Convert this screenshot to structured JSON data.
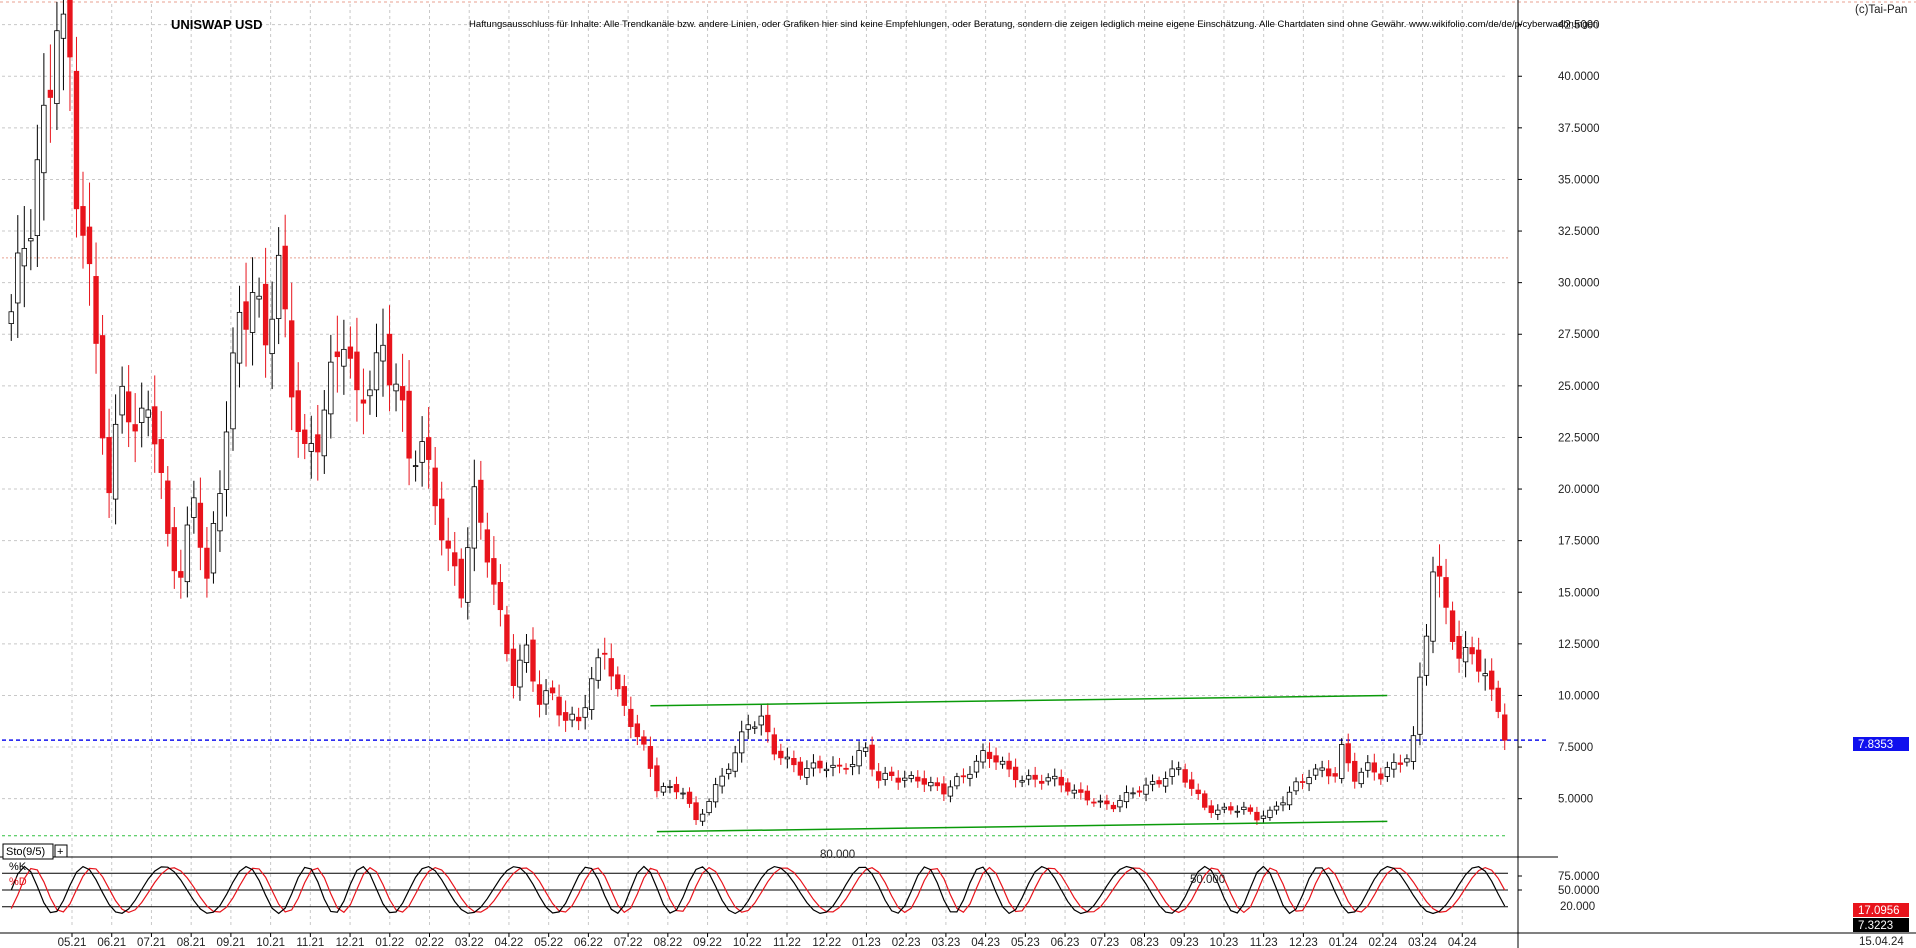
{
  "header": {
    "title": "UNISWAP USD",
    "disclaimer": "Haftungsausschluss für Inhalte: Alle Trendkanäle bzw. andere Linien, oder Grafiken hier sind keine Empfehlungen, oder Beratung, sondern die zeigen lediglich meine eigene Einschätzung. Alle Chartdaten sind ohne Gewähr.  www.wikifolio.com/de/de/p/cyberwaehrungen",
    "copyright": "(c)Tai-Pan"
  },
  "colors": {
    "up_candle": "#000000",
    "down_candle": "#e8141c",
    "trend_line": "#0a9a0a",
    "price_line": "#1010ee",
    "k_line": "#000000",
    "d_line": "#e8141c",
    "resistance_line": "#e8a090",
    "support_line": "#30c040"
  },
  "chart_data": [
    {
      "type": "candlestick",
      "title": "UNISWAP USD",
      "ylim": [
        2.9,
        43.5
      ],
      "y_ticks": [
        "42.5000",
        "40.0000",
        "37.5000",
        "35.0000",
        "32.5000",
        "30.0000",
        "27.5000",
        "25.0000",
        "22.5000",
        "20.0000",
        "17.5000",
        "15.0000",
        "12.5000",
        "10.0000",
        "7.5000",
        "5.0000"
      ],
      "x_ticks": [
        "05.21",
        "06.21",
        "07.21",
        "08.21",
        "09.21",
        "10.21",
        "11.21",
        "12.21",
        "01.22",
        "02.22",
        "03.22",
        "04.22",
        "05.22",
        "06.22",
        "07.22",
        "08.22",
        "09.22",
        "10.22",
        "11.22",
        "12.22",
        "01.23",
        "02.23",
        "03.23",
        "04.23",
        "05.23",
        "06.23",
        "07.23",
        "08.23",
        "09.23",
        "10.23",
        "11.23",
        "12.23",
        "01.24",
        "02.24",
        "03.24",
        "04.24"
      ],
      "last_date": "15.04.24",
      "current_price": "7.8353",
      "current_value": 7.8353,
      "resistance_level": 31.2,
      "support_level": 3.2,
      "anchors": [
        [
          0,
          28
        ],
        [
          3,
          33
        ],
        [
          6,
          41
        ],
        [
          7,
          44
        ],
        [
          9,
          40
        ],
        [
          10,
          34
        ],
        [
          13,
          27
        ],
        [
          15,
          20
        ],
        [
          17,
          26
        ],
        [
          19,
          22
        ],
        [
          21,
          24
        ],
        [
          24,
          18
        ],
        [
          26,
          16
        ],
        [
          28,
          20
        ],
        [
          30,
          15
        ],
        [
          32,
          20
        ],
        [
          33,
          23
        ],
        [
          35,
          29
        ],
        [
          37,
          30
        ],
        [
          39,
          27
        ],
        [
          41,
          30
        ],
        [
          43,
          25
        ],
        [
          45,
          22
        ],
        [
          47,
          23
        ],
        [
          49,
          25
        ],
        [
          51,
          27
        ],
        [
          53,
          24
        ],
        [
          55,
          26
        ],
        [
          57,
          27
        ],
        [
          59,
          25
        ],
        [
          61,
          21
        ],
        [
          63,
          22
        ],
        [
          65,
          20
        ],
        [
          67,
          17
        ],
        [
          69,
          15
        ],
        [
          71,
          19
        ],
        [
          73,
          17
        ],
        [
          75,
          14
        ],
        [
          77,
          11
        ],
        [
          79,
          12
        ],
        [
          81,
          9.5
        ],
        [
          83,
          10
        ],
        [
          85,
          9
        ],
        [
          87,
          9
        ],
        [
          89,
          10.5
        ],
        [
          91,
          12
        ],
        [
          93,
          10
        ],
        [
          95,
          9
        ],
        [
          97,
          7.5
        ],
        [
          99,
          5.5
        ],
        [
          101,
          5.3
        ],
        [
          103,
          5.4
        ],
        [
          105,
          4.0
        ],
        [
          107,
          5.0
        ],
        [
          109,
          6.0
        ],
        [
          111,
          7.0
        ],
        [
          113,
          8.7
        ],
        [
          115,
          9.0
        ],
        [
          117,
          7.5
        ],
        [
          119,
          6.7
        ],
        [
          121,
          6.2
        ],
        [
          123,
          6.5
        ],
        [
          125,
          6.8
        ],
        [
          127,
          6.5
        ],
        [
          129,
          6.7
        ],
        [
          131,
          7.2
        ],
        [
          133,
          5.9
        ],
        [
          135,
          6.3
        ],
        [
          137,
          6.0
        ],
        [
          139,
          5.9
        ],
        [
          141,
          5.5
        ],
        [
          143,
          5.4
        ],
        [
          145,
          6.0
        ],
        [
          147,
          6.5
        ],
        [
          149,
          7.0
        ],
        [
          151,
          6.8
        ],
        [
          153,
          6.3
        ],
        [
          155,
          6.1
        ],
        [
          157,
          6.0
        ],
        [
          159,
          5.9
        ],
        [
          161,
          5.6
        ],
        [
          163,
          5.3
        ],
        [
          165,
          5.2
        ],
        [
          167,
          4.8
        ],
        [
          169,
          4.6
        ],
        [
          171,
          5.0
        ],
        [
          173,
          5.5
        ],
        [
          175,
          5.8
        ],
        [
          177,
          6.2
        ],
        [
          179,
          6.3
        ],
        [
          181,
          5.4
        ],
        [
          183,
          4.6
        ],
        [
          185,
          4.5
        ],
        [
          187,
          4.6
        ],
        [
          189,
          4.4
        ],
        [
          191,
          4.0
        ],
        [
          193,
          4.3
        ],
        [
          195,
          5.1
        ],
        [
          197,
          5.7
        ],
        [
          199,
          6.1
        ],
        [
          201,
          6.2
        ],
        [
          203,
          6.2
        ],
        [
          204,
          7.5
        ],
        [
          206,
          6.2
        ],
        [
          208,
          6.5
        ],
        [
          210,
          6.0
        ],
        [
          212,
          6.5
        ],
        [
          214,
          7.2
        ],
        [
          215,
          8.0
        ],
        [
          216,
          11
        ],
        [
          218,
          16
        ],
        [
          220,
          14
        ],
        [
          222,
          11.5
        ],
        [
          224,
          12.5
        ],
        [
          226,
          11
        ],
        [
          228,
          9.5
        ],
        [
          229,
          7.85
        ]
      ]
    },
    {
      "type": "line",
      "title": "Sto(9/5)",
      "ylim": [
        0,
        100
      ],
      "y_ticks": [
        "75.0000",
        "50.0000"
      ],
      "levels": [
        "80.000",
        "50.000",
        "20.000"
      ],
      "series": [
        {
          "name": "%K",
          "last": "17.0956"
        },
        {
          "name": "%D",
          "last": "7.3223"
        }
      ],
      "k_period_bars": 10.5
    }
  ]
}
